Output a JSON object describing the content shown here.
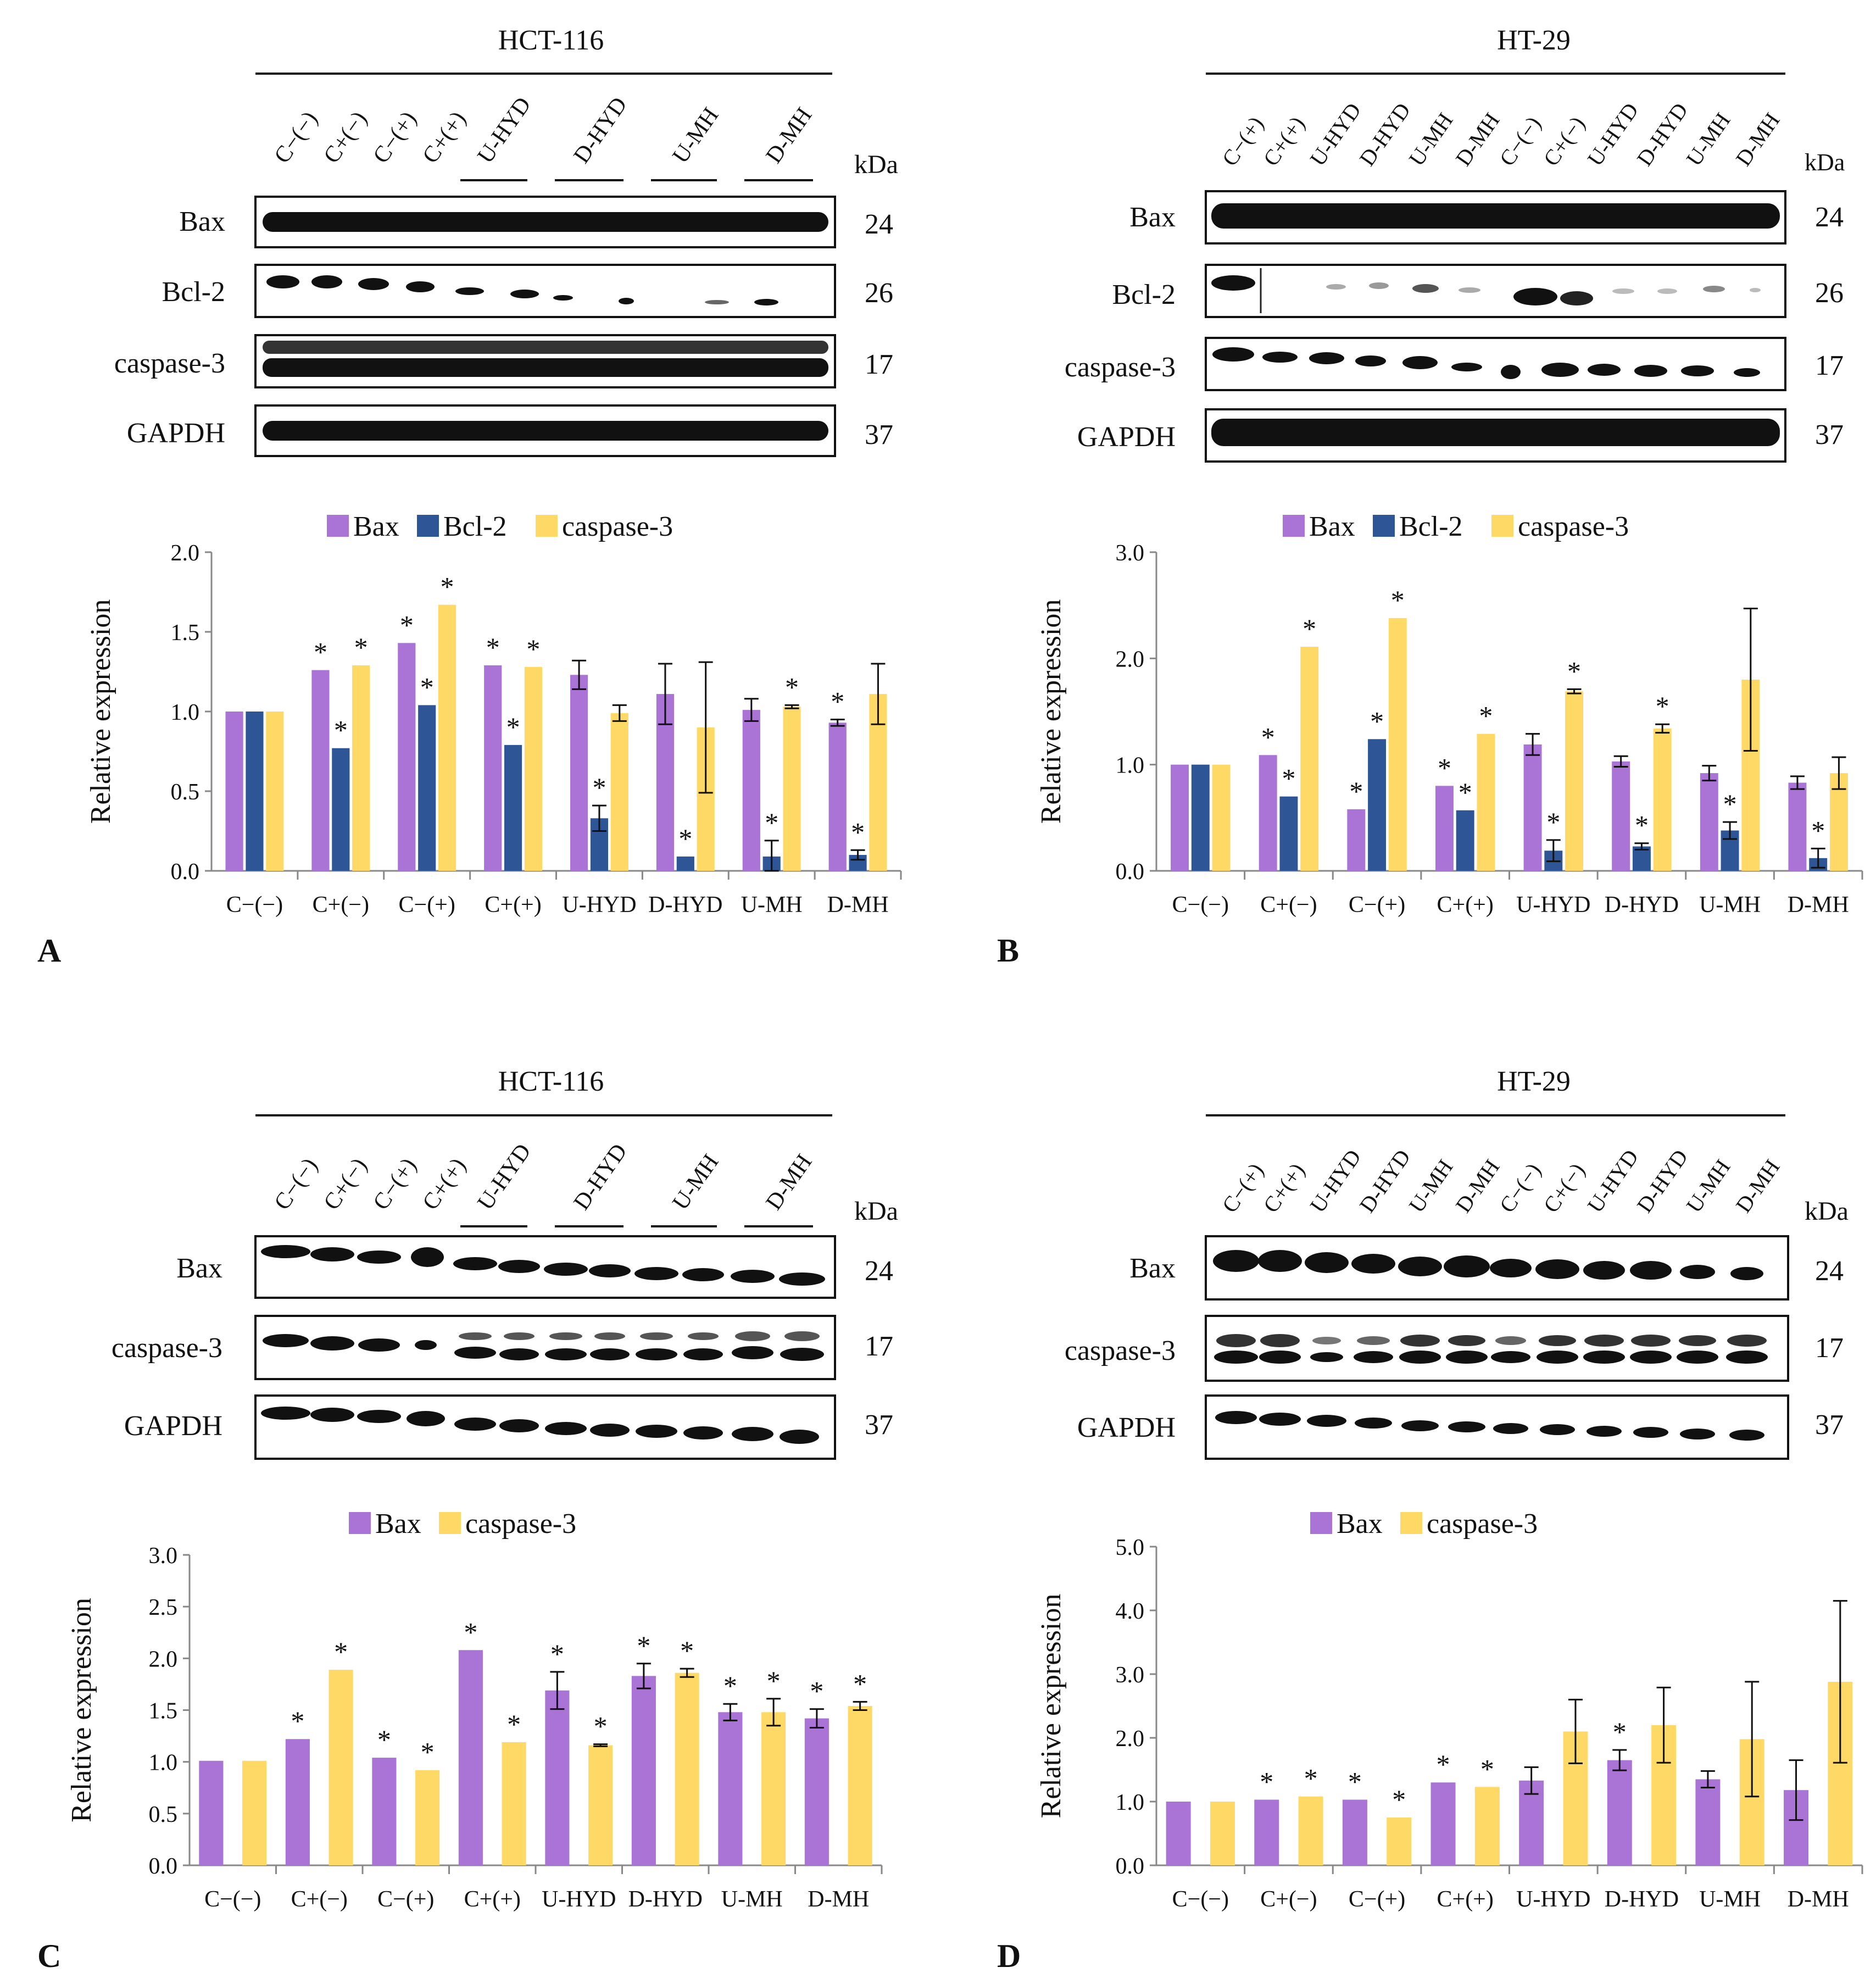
{
  "panels": [
    {
      "letter": "A",
      "cell_line": "HCT-116",
      "lanes": [
        "C−(−)",
        "C+(−)",
        "C−(+)",
        "C+(+)",
        "U-HYD",
        "D-HYD",
        "U-MH",
        "D-MH"
      ],
      "kda_label": "kDa",
      "blots": [
        {
          "protein": "Bax",
          "kda": "24"
        },
        {
          "protein": "Bcl-2",
          "kda": "26"
        },
        {
          "protein": "caspase-3",
          "kda": "17"
        },
        {
          "protein": "GAPDH",
          "kda": "37"
        }
      ]
    },
    {
      "letter": "B",
      "cell_line": "HT-29",
      "lanes": [
        "C−(+)",
        "C+(+)",
        "U-HYD",
        "D-HYD",
        "U-MH",
        "D-MH",
        "C−(−)",
        "C+(−)",
        "U-HYD",
        "D-HYD",
        "U-MH",
        "D-MH"
      ],
      "kda_label": "kDa",
      "blots": [
        {
          "protein": "Bax",
          "kda": "24"
        },
        {
          "protein": "Bcl-2",
          "kda": "26"
        },
        {
          "protein": "caspase-3",
          "kda": "17"
        },
        {
          "protein": "GAPDH",
          "kda": "37"
        }
      ]
    },
    {
      "letter": "C",
      "cell_line": "HCT-116",
      "lanes": [
        "C−(−)",
        "C+(−)",
        "C−(+)",
        "C+(+)",
        "U-HYD",
        "D-HYD",
        "U-MH",
        "D-MH"
      ],
      "kda_label": "kDa",
      "blots": [
        {
          "protein": "Bax",
          "kda": "24"
        },
        {
          "protein": "caspase-3",
          "kda": "17"
        },
        {
          "protein": "GAPDH",
          "kda": "37"
        }
      ]
    },
    {
      "letter": "D",
      "cell_line": "HT-29",
      "lanes": [
        "C−(+)",
        "C+(+)",
        "U-HYD",
        "D-HYD",
        "U-MH",
        "D-MH",
        "C−(−)",
        "C+(−)",
        "U-HYD",
        "D-HYD",
        "U-MH",
        "D-MH"
      ],
      "kda_label": "kDa",
      "blots": [
        {
          "protein": "Bax",
          "kda": "24"
        },
        {
          "protein": "caspase-3",
          "kda": "17"
        },
        {
          "protein": "GAPDH",
          "kda": "37"
        }
      ]
    }
  ],
  "colors": {
    "Bax": "#a974d6",
    "Bcl-2": "#2e5596",
    "caspase-3": "#ffd966"
  },
  "chart_data": [
    {
      "panel": "A",
      "type": "bar",
      "ylabel": "Relative expression",
      "ylim": [
        0,
        2.0
      ],
      "yticks": [
        "0.0",
        "0.5",
        "1.0",
        "1.5",
        "2.0"
      ],
      "categories": [
        "C−(−)",
        "C+(−)",
        "C−(+)",
        "C+(+)",
        "U-HYD",
        "D-HYD",
        "U-MH",
        "D-MH"
      ],
      "series": [
        {
          "name": "Bax",
          "values": [
            1.0,
            1.26,
            1.43,
            1.29,
            1.23,
            1.11,
            1.01,
            0.93
          ],
          "errors": [
            0,
            0,
            0,
            0,
            0.09,
            0.19,
            0.07,
            0.02
          ],
          "sig": [
            false,
            true,
            true,
            true,
            false,
            false,
            false,
            true
          ]
        },
        {
          "name": "Bcl-2",
          "values": [
            1.0,
            0.77,
            1.04,
            0.79,
            0.33,
            0.09,
            0.09,
            0.1
          ],
          "errors": [
            0,
            0,
            0,
            0,
            0.08,
            0,
            0.1,
            0.03
          ],
          "sig": [
            false,
            true,
            true,
            true,
            true,
            true,
            true,
            true
          ]
        },
        {
          "name": "caspase-3",
          "values": [
            1.0,
            1.29,
            1.67,
            1.28,
            0.99,
            0.9,
            1.03,
            1.11
          ],
          "errors": [
            0,
            0,
            0,
            0,
            0.05,
            0.41,
            0.01,
            0.19
          ],
          "sig": [
            false,
            true,
            true,
            true,
            false,
            false,
            true,
            false
          ]
        }
      ]
    },
    {
      "panel": "B",
      "type": "bar",
      "ylabel": "Relative expression",
      "ylim": [
        0,
        3.0
      ],
      "yticks": [
        "0.0",
        "1.0",
        "2.0",
        "3.0"
      ],
      "categories": [
        "C−(−)",
        "C+(−)",
        "C−(+)",
        "C+(+)",
        "U-HYD",
        "D-HYD",
        "U-MH",
        "D-MH"
      ],
      "series": [
        {
          "name": "Bax",
          "values": [
            1.0,
            1.09,
            0.58,
            0.8,
            1.19,
            1.03,
            0.92,
            0.83
          ],
          "errors": [
            0,
            0,
            0,
            0,
            0.1,
            0.05,
            0.07,
            0.06
          ],
          "sig": [
            false,
            true,
            true,
            true,
            false,
            false,
            false,
            false
          ]
        },
        {
          "name": "Bcl-2",
          "values": [
            1.0,
            0.7,
            1.24,
            0.57,
            0.19,
            0.23,
            0.38,
            0.12
          ],
          "errors": [
            0,
            0,
            0,
            0,
            0.1,
            0.03,
            0.08,
            0.09
          ],
          "sig": [
            false,
            true,
            true,
            true,
            true,
            true,
            true,
            true
          ]
        },
        {
          "name": "caspase-3",
          "values": [
            1.0,
            2.11,
            2.38,
            1.29,
            1.69,
            1.34,
            1.8,
            0.92
          ],
          "errors": [
            0,
            0,
            0,
            0,
            0.02,
            0.04,
            0.67,
            0.15
          ],
          "sig": [
            false,
            true,
            true,
            true,
            true,
            true,
            false,
            false
          ]
        }
      ]
    },
    {
      "panel": "C",
      "type": "bar",
      "ylabel": "Relative expression",
      "ylim": [
        0,
        3.0
      ],
      "yticks": [
        "0.0",
        "0.5",
        "1.0",
        "1.5",
        "2.0",
        "2.5",
        "3.0"
      ],
      "categories": [
        "C−(−)",
        "C+(−)",
        "C−(+)",
        "C+(+)",
        "U-HYD",
        "D-HYD",
        "U-MH",
        "D-MH"
      ],
      "series": [
        {
          "name": "Bax",
          "values": [
            1.01,
            1.22,
            1.04,
            2.08,
            1.69,
            1.83,
            1.48,
            1.42
          ],
          "errors": [
            0,
            0,
            0,
            0,
            0.18,
            0.12,
            0.08,
            0.09
          ],
          "sig": [
            false,
            true,
            true,
            true,
            true,
            true,
            true,
            true
          ]
        },
        {
          "name": "caspase-3",
          "values": [
            1.01,
            1.89,
            0.92,
            1.19,
            1.16,
            1.86,
            1.48,
            1.54
          ],
          "errors": [
            0,
            0,
            0,
            0,
            0.01,
            0.04,
            0.13,
            0.04
          ],
          "sig": [
            false,
            true,
            true,
            true,
            true,
            true,
            true,
            true
          ]
        }
      ]
    },
    {
      "panel": "D",
      "type": "bar",
      "ylabel": "Relative expression",
      "ylim": [
        0,
        5.0
      ],
      "yticks": [
        "0.0",
        "1.0",
        "2.0",
        "3.0",
        "4.0",
        "5.0"
      ],
      "categories": [
        "C−(−)",
        "C+(−)",
        "C−(+)",
        "C+(+)",
        "U-HYD",
        "D-HYD",
        "U-MH",
        "D-MH"
      ],
      "series": [
        {
          "name": "Bax",
          "values": [
            1.0,
            1.03,
            1.03,
            1.3,
            1.33,
            1.65,
            1.35,
            1.18
          ],
          "errors": [
            0,
            0,
            0,
            0,
            0.21,
            0.16,
            0.13,
            0.47
          ],
          "sig": [
            false,
            true,
            true,
            true,
            false,
            true,
            false,
            false
          ]
        },
        {
          "name": "caspase-3",
          "values": [
            1.0,
            1.08,
            0.75,
            1.23,
            2.1,
            2.2,
            1.98,
            2.88
          ],
          "errors": [
            0,
            0,
            0,
            0,
            0.5,
            0.59,
            0.9,
            1.27
          ],
          "sig": [
            false,
            true,
            true,
            true,
            false,
            false,
            false,
            false
          ]
        }
      ]
    }
  ],
  "significance_marker": "*"
}
